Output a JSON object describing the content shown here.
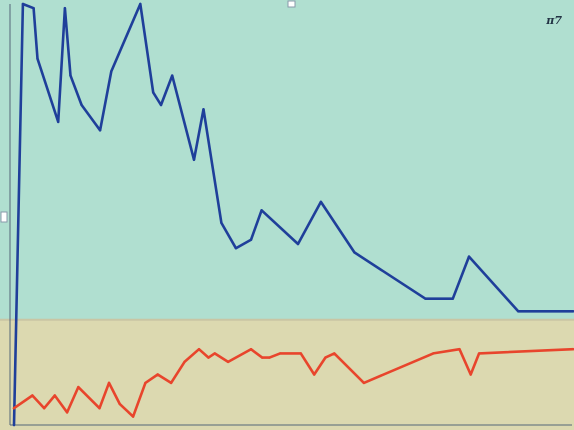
{
  "chart_data": {
    "type": "line",
    "title": "",
    "xlabel": "",
    "ylabel": "",
    "corner_label": "π7",
    "grid": false,
    "legend": "none",
    "xlim": [
      0,
      100
    ],
    "ylim": [
      0,
      100
    ],
    "bands": [
      {
        "from": 25,
        "to": 100,
        "color": "#b0dfd0"
      },
      {
        "from": 0,
        "to": 25,
        "color": "#dcd9b0"
      }
    ],
    "band_divider_color": "#c9c6a4",
    "series": [
      {
        "color": "#1f3f9a",
        "x": [
          0,
          1.6,
          3.5,
          4.2,
          7.9,
          9.1,
          10.1,
          12.1,
          15.4,
          17.4,
          22.6,
          24.9,
          26.3,
          28.3,
          32.2,
          33.9,
          37.1,
          39.7,
          42.4,
          44.3,
          50.8,
          54.9,
          60.9,
          73.6,
          78.5,
          81.4,
          90.2,
          100
        ],
        "y": [
          0,
          100,
          99,
          87,
          72,
          99,
          83,
          76,
          70,
          84,
          100,
          79,
          76,
          83,
          63,
          75,
          48,
          42,
          44,
          51,
          43,
          53,
          41,
          30,
          30,
          40,
          27,
          27
        ]
      },
      {
        "color": "#e8452c",
        "x": [
          0,
          3.3,
          5.4,
          7.3,
          9.5,
          11.5,
          15.3,
          17.0,
          18.9,
          21.3,
          23.5,
          25.7,
          28.1,
          30.5,
          33.1,
          34.8,
          35.9,
          38.3,
          42.4,
          44.4,
          45.7,
          47.6,
          51.3,
          53.7,
          55.7,
          57.3,
          62.6,
          75.0,
          79.7,
          81.7,
          83.2,
          100
        ],
        "y": [
          4,
          7,
          4,
          7,
          3,
          9,
          4,
          10,
          5,
          2,
          10,
          12,
          10,
          15,
          18,
          16,
          17,
          15,
          18,
          16,
          16,
          17,
          17,
          12,
          16,
          17,
          10,
          17,
          18,
          12,
          17,
          18
        ]
      }
    ]
  }
}
